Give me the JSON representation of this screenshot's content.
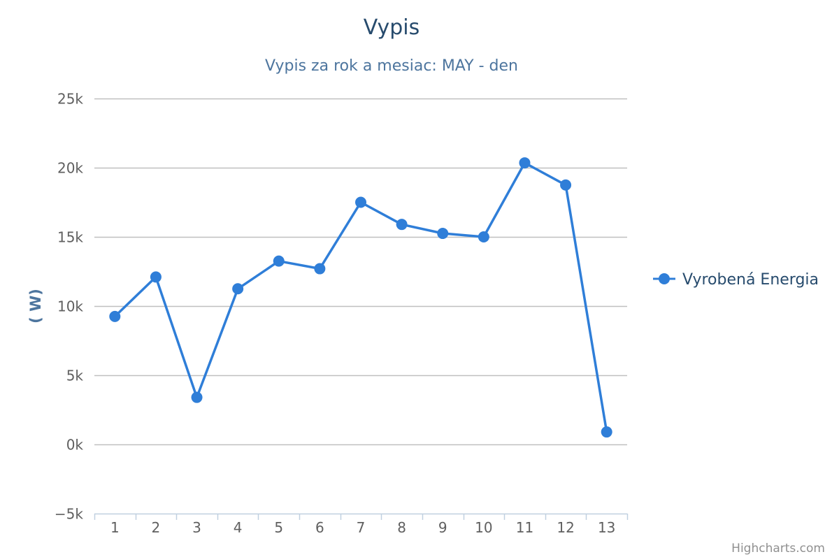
{
  "chart_data": {
    "type": "line",
    "title": "Vypis",
    "subtitle": "Vypis za rok a mesiac: MAY - den",
    "xlabel": "",
    "ylabel": "( W)",
    "categories": [
      "1",
      "2",
      "3",
      "4",
      "5",
      "6",
      "7",
      "8",
      "9",
      "10",
      "11",
      "12",
      "13"
    ],
    "series": [
      {
        "name": "Vyrobená Energia",
        "color": "#2f7ed8",
        "values": [
          9250,
          12100,
          3400,
          11250,
          13250,
          12700,
          17500,
          15900,
          15250,
          15000,
          20350,
          18750,
          900
        ]
      }
    ],
    "ylim": [
      -5000,
      25000
    ],
    "yticks": [
      {
        "value": -5000,
        "label": "−5k"
      },
      {
        "value": 0,
        "label": "0k"
      },
      {
        "value": 5000,
        "label": "5k"
      },
      {
        "value": 10000,
        "label": "10k"
      },
      {
        "value": 15000,
        "label": "15k"
      },
      {
        "value": 20000,
        "label": "20k"
      },
      {
        "value": 25000,
        "label": "25k"
      }
    ],
    "grid": true,
    "legend_position": "right"
  },
  "credits": "Highcharts.com",
  "colors": {
    "grid": "#c0c0c0",
    "axis": "#c0d0e0",
    "series": "#2f7ed8"
  }
}
